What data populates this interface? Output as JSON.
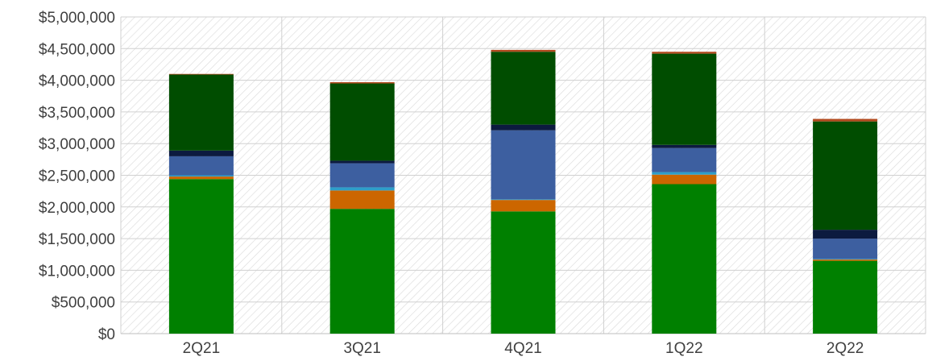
{
  "chart_data": {
    "type": "bar",
    "stacked": true,
    "categories": [
      "2Q21",
      "3Q21",
      "4Q21",
      "1Q22",
      "2Q22"
    ],
    "ylim": [
      0,
      5000000
    ],
    "yticks": [
      0,
      500000,
      1000000,
      1500000,
      2000000,
      2500000,
      3000000,
      3500000,
      4000000,
      4500000,
      5000000
    ],
    "ytick_labels": [
      "$0",
      "$500,000",
      "$1,000,000",
      "$1,500,000",
      "$2,000,000",
      "$2,500,000",
      "$3,000,000",
      "$3,500,000",
      "$4,000,000",
      "$4,500,000",
      "$5,000,000"
    ],
    "grid": true,
    "legend": "none",
    "series": [
      {
        "color": "#008000",
        "values": [
          2440000,
          1970000,
          1930000,
          2360000,
          1150000
        ]
      },
      {
        "color": "#cc6600",
        "values": [
          40000,
          290000,
          180000,
          150000,
          20000
        ]
      },
      {
        "color": "#2e9ec9",
        "values": [
          20000,
          50000,
          10000,
          40000,
          10000
        ]
      },
      {
        "color": "#3d5fa0",
        "values": [
          300000,
          380000,
          1090000,
          380000,
          320000
        ]
      },
      {
        "color": "#0c1a3f",
        "values": [
          90000,
          40000,
          90000,
          50000,
          140000
        ]
      },
      {
        "color": "#004d00",
        "values": [
          1200000,
          1220000,
          1150000,
          1440000,
          1710000
        ]
      },
      {
        "color": "#b24a1e",
        "values": [
          10000,
          20000,
          30000,
          30000,
          40000
        ]
      }
    ]
  }
}
